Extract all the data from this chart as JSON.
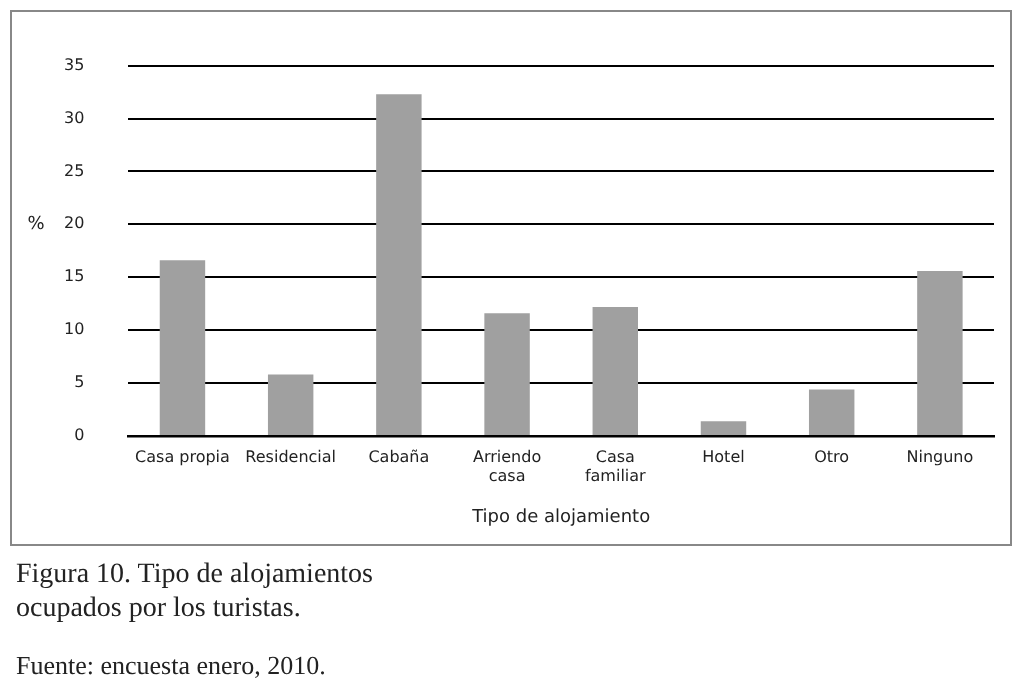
{
  "chart_data": {
    "type": "bar",
    "title": "Figura 10. Tipo de alojamientos ocupados por los turistas.",
    "xlabel": "Tipo de alojamiento",
    "ylabel": "%",
    "categories": [
      "Casa propia",
      "Residencial",
      "Cabaña",
      "Arriendo casa",
      "Casa familiar",
      "Hotel",
      "Otro",
      "Ninguno"
    ],
    "values": [
      16.6,
      5.8,
      32.3,
      11.6,
      12.2,
      1.4,
      4.4,
      15.6
    ],
    "color": "#a0a0a0",
    "ylim": [
      0,
      35
    ],
    "yticks": [
      0,
      5,
      10,
      15,
      20,
      25,
      30,
      35
    ],
    "grid": "y",
    "legend": false,
    "annotations": [
      "Fuente: encuesta enero, 2010."
    ]
  }
}
